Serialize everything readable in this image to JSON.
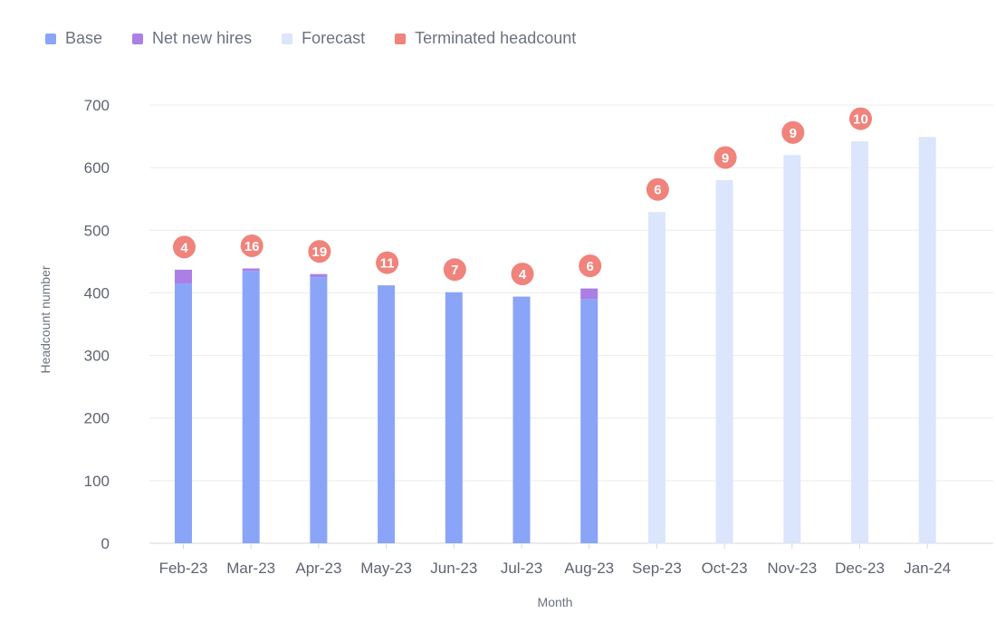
{
  "colors": {
    "base": "#8aa4f7",
    "net_new_hires": "#ab7fe6",
    "forecast": "#dbe5fc",
    "terminated": "#f0837b",
    "grid": "#ececec",
    "axis": "#d9d9d9"
  },
  "legend": {
    "items": [
      {
        "label": "Base",
        "color": "#8aa4f7"
      },
      {
        "label": "Net new hires",
        "color": "#ab7fe6"
      },
      {
        "label": "Forecast",
        "color": "#dbe5fc"
      },
      {
        "label": "Terminated headcount",
        "color": "#f0837b"
      }
    ]
  },
  "chart_data": {
    "type": "bar",
    "stacked": true,
    "xlabel": "Month",
    "ylabel": "Headcount number",
    "ylim": [
      0,
      700
    ],
    "yticks": [
      0,
      100,
      200,
      300,
      400,
      500,
      600,
      700
    ],
    "grid": true,
    "legend_position": "top-left",
    "categories": [
      "Feb-23",
      "Mar-23",
      "Apr-23",
      "May-23",
      "Jun-23",
      "Jul-23",
      "Aug-23",
      "Sep-23",
      "Oct-23",
      "Nov-23",
      "Dec-23",
      "Jan-24"
    ],
    "series": [
      {
        "name": "Base",
        "values": [
          415,
          435,
          425,
          412,
          401,
          394,
          390,
          null,
          null,
          null,
          null,
          null
        ]
      },
      {
        "name": "Net new hires",
        "values": [
          22,
          4,
          5,
          0,
          0,
          0,
          17,
          null,
          null,
          null,
          null,
          null
        ]
      },
      {
        "name": "Forecast",
        "values": [
          null,
          null,
          null,
          null,
          null,
          null,
          null,
          529,
          580,
          620,
          642,
          649
        ]
      },
      {
        "name": "Terminated headcount",
        "values": [
          4,
          16,
          19,
          11,
          7,
          4,
          6,
          6,
          9,
          9,
          10,
          null
        ]
      }
    ]
  }
}
